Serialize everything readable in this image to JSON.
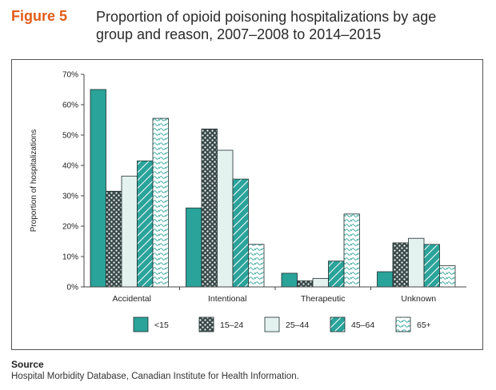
{
  "figure": {
    "label": "Figure 5",
    "title_line1": "Proportion of opioid poisoning hospitalizations by age",
    "title_line2": "group and reason, 2007–2008 to 2014–2015"
  },
  "source": {
    "heading": "Source",
    "text": "Hospital Morbidity Database, Canadian Institute for Health Information."
  },
  "colors": {
    "teal": "#2aa39a",
    "dark": "#3a4a4a",
    "light": "#e3f2ef",
    "outline": "#1f2d2d"
  },
  "chart_data": {
    "type": "bar",
    "title": "",
    "xlabel": "",
    "ylabel": "Proportion of hospitalizations",
    "ylim": [
      0,
      70
    ],
    "yticks": [
      "0%",
      "10%",
      "20%",
      "30%",
      "40%",
      "50%",
      "60%",
      "70%"
    ],
    "categories": [
      "Accidental",
      "Intentional",
      "Therapeutic",
      "Unknown"
    ],
    "series": [
      {
        "name": "<15",
        "pattern": "solid-teal",
        "values": [
          65,
          26,
          4.5,
          5
        ]
      },
      {
        "name": "15–24",
        "pattern": "dots",
        "values": [
          31.5,
          52,
          2,
          14.5
        ]
      },
      {
        "name": "25–44",
        "pattern": "solid-light",
        "values": [
          36.5,
          45,
          2.8,
          16
        ]
      },
      {
        "name": "45–64",
        "pattern": "diagonal",
        "values": [
          41.5,
          35.5,
          8.5,
          14
        ]
      },
      {
        "name": "65+",
        "pattern": "wavy",
        "values": [
          55.5,
          14,
          24,
          7
        ]
      }
    ],
    "legend_position": "bottom"
  }
}
